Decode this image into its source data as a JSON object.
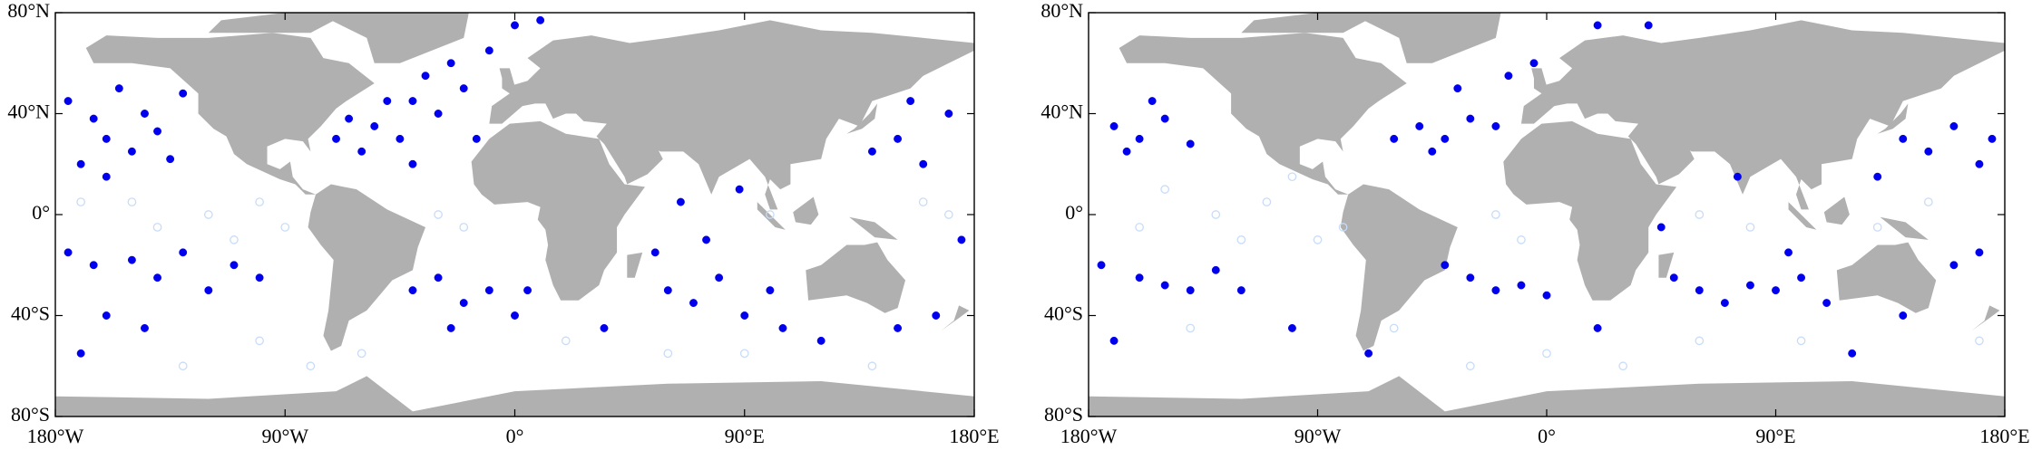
{
  "chart_data": [
    {
      "type": "scatter",
      "xlim": [
        -180,
        180
      ],
      "ylim": [
        -80,
        80
      ],
      "xticks": [
        {
          "value": -180,
          "label": "180°W"
        },
        {
          "value": -90,
          "label": "90°W"
        },
        {
          "value": 0,
          "label": "0°"
        },
        {
          "value": 90,
          "label": "90°E"
        },
        {
          "value": 180,
          "label": "180°E"
        }
      ],
      "yticks": [
        {
          "value": -80,
          "label": "80°S"
        },
        {
          "value": -40,
          "label": "40°S"
        },
        {
          "value": 0,
          "label": "0°"
        },
        {
          "value": 40,
          "label": "40°N"
        },
        {
          "value": 80,
          "label": "80°N"
        }
      ],
      "series": [
        {
          "color": "#c8dcf8",
          "marker": "hollow",
          "x": [
            -120,
            -100,
            -140,
            -90,
            -110,
            -80,
            -60,
            -30,
            -20,
            60,
            140,
            100,
            -170,
            160,
            20,
            -100,
            -130,
            90,
            -150,
            170
          ],
          "y": [
            0,
            5,
            -5,
            -5,
            -10,
            -60,
            -55,
            0,
            -5,
            -55,
            -60,
            0,
            5,
            5,
            -50,
            -50,
            -60,
            -55,
            5,
            0
          ]
        },
        {
          "color": "#0000ee",
          "marker": "filled",
          "x": [
            -175,
            -165,
            -160,
            -155,
            -150,
            -145,
            -140,
            -135,
            -170,
            -130,
            -160,
            -70,
            -60,
            -55,
            -45,
            -40,
            -30,
            -35,
            -20,
            -25,
            -50,
            -65,
            -15,
            -40,
            -10,
            0,
            10,
            -175,
            -165,
            -150,
            -140,
            -130,
            -120,
            -160,
            -110,
            -145,
            -170,
            -100,
            -40,
            -30,
            -20,
            -10,
            0,
            -25,
            5,
            60,
            70,
            80,
            90,
            100,
            55,
            75,
            65,
            88,
            105,
            150,
            160,
            170,
            155,
            140,
            175,
            165,
            150,
            120,
            35
          ],
          "y": [
            45,
            38,
            30,
            50,
            25,
            40,
            33,
            22,
            20,
            48,
            15,
            30,
            25,
            35,
            30,
            45,
            40,
            55,
            50,
            60,
            45,
            38,
            30,
            20,
            65,
            75,
            77,
            -15,
            -20,
            -18,
            -25,
            -15,
            -30,
            -40,
            -20,
            -45,
            -55,
            -25,
            -30,
            -25,
            -35,
            -30,
            -40,
            -45,
            -30,
            -30,
            -35,
            -25,
            -40,
            -30,
            -15,
            -10,
            5,
            10,
            -45,
            30,
            20,
            40,
            45,
            25,
            -10,
            -40,
            -45,
            -50,
            -45
          ]
        }
      ]
    },
    {
      "type": "scatter",
      "xlim": [
        -180,
        180
      ],
      "ylim": [
        -80,
        80
      ],
      "xticks": [
        {
          "value": -180,
          "label": "180°W"
        },
        {
          "value": -90,
          "label": "90°W"
        },
        {
          "value": 0,
          "label": "0°"
        },
        {
          "value": 90,
          "label": "90°E"
        },
        {
          "value": 180,
          "label": "180°E"
        }
      ],
      "yticks": [
        {
          "value": -80,
          "label": "80°S"
        },
        {
          "value": -40,
          "label": "40°S"
        },
        {
          "value": 0,
          "label": "0°"
        },
        {
          "value": 40,
          "label": "40°N"
        },
        {
          "value": 80,
          "label": "80°N"
        }
      ],
      "series": [
        {
          "color": "#c8dcf8",
          "marker": "hollow",
          "x": [
            -130,
            -110,
            -90,
            -150,
            -120,
            -20,
            -10,
            60,
            80,
            150,
            170,
            -140,
            -60,
            0,
            60,
            100,
            130,
            -100,
            -160,
            30,
            -80,
            -30
          ],
          "y": [
            0,
            5,
            -10,
            10,
            -10,
            0,
            -10,
            0,
            -5,
            5,
            -50,
            -45,
            -45,
            -55,
            -50,
            -50,
            -5,
            15,
            -5,
            -60,
            -5,
            -60
          ]
        },
        {
          "color": "#0000ee",
          "marker": "filled",
          "x": [
            -170,
            -160,
            -150,
            -140,
            -165,
            -155,
            -60,
            -50,
            -40,
            -30,
            -45,
            -20,
            -15,
            -35,
            -5,
            20,
            40,
            140,
            150,
            160,
            170,
            175,
            130,
            -175,
            -160,
            -150,
            -140,
            -130,
            -120,
            -30,
            -20,
            -10,
            0,
            -40,
            50,
            60,
            70,
            80,
            90,
            100,
            110,
            140,
            160,
            170,
            -170,
            -100,
            20,
            120,
            45,
            -70,
            75,
            95
          ],
          "y": [
            35,
            30,
            38,
            28,
            25,
            45,
            30,
            35,
            30,
            38,
            25,
            35,
            55,
            50,
            60,
            75,
            75,
            30,
            25,
            35,
            20,
            30,
            15,
            -20,
            -25,
            -28,
            -30,
            -22,
            -30,
            -25,
            -30,
            -28,
            -32,
            -20,
            -25,
            -30,
            -35,
            -28,
            -30,
            -25,
            -35,
            -40,
            -20,
            -15,
            -50,
            -45,
            -45,
            -55,
            -5,
            -55,
            15,
            -15
          ]
        }
      ]
    }
  ]
}
